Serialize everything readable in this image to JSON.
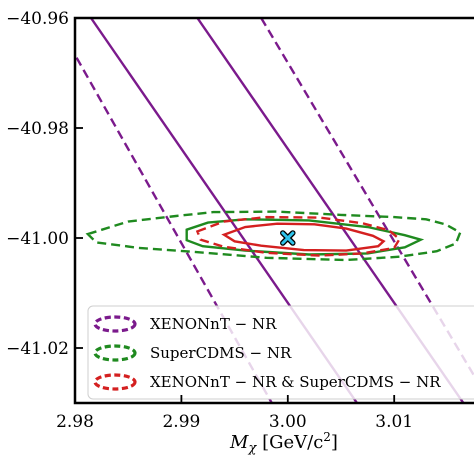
{
  "chart_data": {
    "type": "line",
    "title": "",
    "xlabel": "M_χ [GeV/c²]",
    "xlabel_parts": {
      "symbol": "M",
      "sub": "χ",
      "unit_pre": "[GeV/c",
      "unit_sup": "2",
      "unit_post": "]"
    },
    "ylabel": "",
    "xlim": [
      2.98,
      3.0175
    ],
    "ylim": [
      -41.03,
      -40.96
    ],
    "xticks": [
      2.98,
      2.99,
      3.0,
      3.01,
      3.02
    ],
    "xtick_labels": [
      "2.98",
      "2.99",
      "3.00",
      "3.01",
      "3.0"
    ],
    "yticks": [
      -40.96,
      -40.98,
      -41.0,
      -41.02
    ],
    "ytick_labels": [
      "−40.96",
      "−40.98",
      "−41.00",
      "−41.02"
    ],
    "grid": false,
    "legend_placement": "bottom",
    "colors": {
      "xenon": "#7b1a8c",
      "supercdms": "#1f8a1f",
      "combined": "#d42020",
      "marker": "#2ec4ec"
    },
    "series": [
      {
        "name": "XENONnT − NR",
        "color": "#7b1a8c",
        "solid_lines": [
          [
            [
              2.9815,
              -40.96
            ],
            [
              3.0065,
              -41.03
            ]
          ],
          [
            [
              2.9915,
              -40.96
            ],
            [
              3.0165,
              -41.03
            ]
          ]
        ],
        "dashed_lines": [
          [
            [
              2.9795,
              -40.965
            ],
            [
              2.9985,
              -41.03
            ]
          ],
          [
            [
              2.9975,
              -40.96
            ],
            [
              3.0175,
              -41.025
            ]
          ]
        ]
      },
      {
        "name": "SuperCDMS − NR",
        "color": "#1f8a1f",
        "solid_contour": [
          [
            2.9905,
            -40.9985
          ],
          [
            2.9925,
            -40.9972
          ],
          [
            2.996,
            -40.9966
          ],
          [
            3.002,
            -40.9968
          ],
          [
            3.0075,
            -40.998
          ],
          [
            3.011,
            -40.9995
          ],
          [
            3.0125,
            -41.0003
          ],
          [
            3.011,
            -41.0017
          ],
          [
            3.0075,
            -41.0028
          ],
          [
            3.002,
            -41.003
          ],
          [
            2.996,
            -41.0023
          ],
          [
            2.992,
            -41.0015
          ],
          [
            2.9905,
            -41.0004
          ]
        ],
        "dashed_contour": [
          [
            2.9812,
            -40.9993
          ],
          [
            2.985,
            -40.997
          ],
          [
            2.9895,
            -40.996
          ],
          [
            2.993,
            -40.9953
          ],
          [
            2.999,
            -40.9952
          ],
          [
            3.005,
            -40.9958
          ],
          [
            3.01,
            -40.9962
          ],
          [
            3.013,
            -40.9966
          ],
          [
            3.0148,
            -40.9975
          ],
          [
            3.0162,
            -40.999
          ],
          [
            3.0158,
            -41.001
          ],
          [
            3.014,
            -41.0024
          ],
          [
            3.0105,
            -41.0034
          ],
          [
            3.0055,
            -41.004
          ],
          [
            2.998,
            -41.0036
          ],
          [
            2.991,
            -41.0025
          ],
          [
            2.986,
            -41.0018
          ],
          [
            2.982,
            -41.0008
          ]
        ]
      },
      {
        "name": "XENONnT − NR & SuperCDMS − NR",
        "color": "#d42020",
        "solid_contour": [
          [
            2.994,
            -40.9994
          ],
          [
            2.996,
            -40.998
          ],
          [
            2.999,
            -40.9974
          ],
          [
            3.0025,
            -40.9975
          ],
          [
            3.0055,
            -40.9983
          ],
          [
            3.008,
            -40.9996
          ],
          [
            3.009,
            -41.0006
          ],
          [
            3.0085,
            -41.0015
          ],
          [
            3.0055,
            -41.0023
          ],
          [
            3.0015,
            -41.0022
          ],
          [
            2.9975,
            -41.0014
          ],
          [
            2.995,
            -41.0006
          ]
        ],
        "dashed_contour": [
          [
            2.9915,
            -40.9988
          ],
          [
            2.994,
            -40.997
          ],
          [
            2.998,
            -40.9962
          ],
          [
            3.003,
            -40.9963
          ],
          [
            3.007,
            -40.9973
          ],
          [
            3.0095,
            -40.9986
          ],
          [
            3.0105,
            -41.0002
          ],
          [
            3.01,
            -41.0018
          ],
          [
            3.007,
            -41.0028
          ],
          [
            3.003,
            -41.0032
          ],
          [
            2.998,
            -41.0027
          ],
          [
            2.994,
            -41.0016
          ],
          [
            2.9918,
            -41.0003
          ]
        ]
      }
    ],
    "best_fit": {
      "x": 3.0,
      "y": -41.0,
      "marker": "x",
      "color": "#2ec4ec"
    }
  },
  "legend": {
    "items": [
      {
        "label": "XENONnT − NR",
        "color": "#7b1a8c"
      },
      {
        "label": "SuperCDMS − NR",
        "color": "#1f8a1f"
      },
      {
        "label": "XENONnT − NR & SuperCDMS − NR",
        "color": "#d42020"
      }
    ]
  }
}
